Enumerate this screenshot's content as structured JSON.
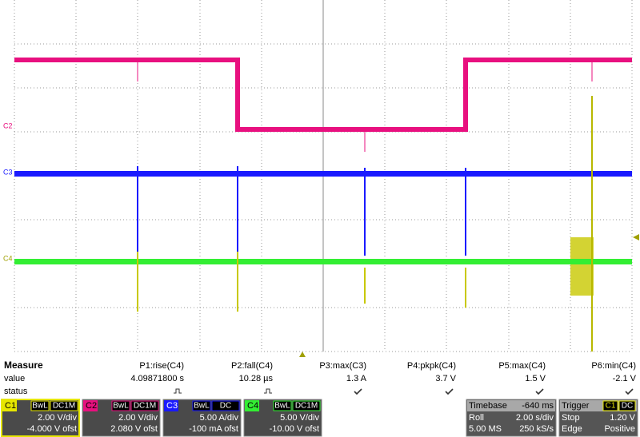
{
  "screen": {
    "channel_labels": [
      "C2",
      "C3",
      "C4"
    ]
  },
  "measure": {
    "title": "Measure",
    "row_labels": [
      "value",
      "status"
    ],
    "params": [
      {
        "name": "P1:rise(C4)",
        "value": "4.09871800 s"
      },
      {
        "name": "P2:fall(C4)",
        "value": "10.28 µs"
      },
      {
        "name": "P3:max(C3)",
        "value": "1.3 A"
      },
      {
        "name": "P4:pkpk(C4)",
        "value": "3.7 V"
      },
      {
        "name": "P5:max(C4)",
        "value": "1.5 V"
      },
      {
        "name": "P6:min(C4)",
        "value": "-2.1 V"
      }
    ]
  },
  "channels": [
    {
      "label": "C1",
      "bw": "BwL",
      "coupling": "DC1M",
      "scale": "2.00 V/div",
      "offset": "-4.000 V ofst"
    },
    {
      "label": "C2",
      "bw": "BwL",
      "coupling": "DC1M",
      "scale": "2.00 V/div",
      "offset": "2.080 V ofst"
    },
    {
      "label": "C3",
      "bw": "BwL",
      "coupling": "DC",
      "scale": "5.00 A/div",
      "offset": "-100 mA ofst"
    },
    {
      "label": "C4",
      "bw": "BwL",
      "coupling": "DC1M",
      "scale": "5.00 V/div",
      "offset": "-10.00 V ofst"
    }
  ],
  "timebase": {
    "title": "Timebase",
    "delay": "-640 ms",
    "mode": "Roll",
    "scale": "2.00 s/div",
    "samples": "5.00 MS",
    "rate": "250 kS/s"
  },
  "trigger": {
    "title": "Trigger",
    "source": "C1",
    "coupling": "DC",
    "mode": "Stop",
    "level": "1.20 V",
    "type": "Edge",
    "slope": "Positive"
  }
}
